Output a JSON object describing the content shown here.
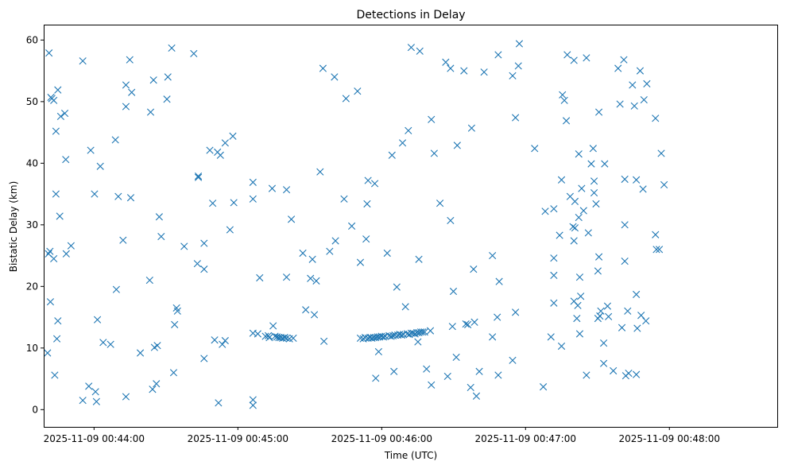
{
  "chart_data": {
    "type": "scatter",
    "title": "Detections in Delay",
    "xlabel": "Time (UTC)",
    "ylabel": "Bistatic Delay (km)",
    "marker": "x",
    "color": "#1f77b4",
    "grid": false,
    "legend": "none",
    "xlim": [
      "2025-11-09 00:43:39",
      "2025-11-09 00:48:45"
    ],
    "ylim": [
      -2.8,
      62.5
    ],
    "xticks": [
      "2025-11-09 00:44:00",
      "2025-11-09 00:45:00",
      "2025-11-09 00:46:00",
      "2025-11-09 00:47:00",
      "2025-11-09 00:48:00"
    ],
    "yticks": [
      0,
      10,
      20,
      30,
      40,
      50,
      60
    ],
    "series": [
      {
        "points": [
          [
            "00:43:41.2",
            57.9
          ],
          [
            "00:43:42.0",
            50.7
          ],
          [
            "00:43:42.4",
            50.5
          ],
          [
            "00:43:43.2",
            50.2
          ],
          [
            "00:43:44.9",
            51.9
          ],
          [
            "00:43:46.1",
            47.6
          ],
          [
            "00:43:47.8",
            48.1
          ],
          [
            "00:43:44.1",
            45.2
          ],
          [
            "00:43:48.2",
            40.6
          ],
          [
            "00:43:44.1",
            35.0
          ],
          [
            "00:43:45.7",
            31.4
          ],
          [
            "00:43:41.0",
            25.3
          ],
          [
            "00:43:41.6",
            25.7
          ],
          [
            "00:43:43.2",
            24.5
          ],
          [
            "00:43:48.4",
            25.3
          ],
          [
            "00:43:50.4",
            26.6
          ],
          [
            "00:43:41.8",
            17.5
          ],
          [
            "00:43:44.9",
            14.4
          ],
          [
            "00:43:44.5",
            11.5
          ],
          [
            "00:43:40.6",
            9.2
          ],
          [
            "00:43:43.6",
            5.6
          ],
          [
            "00:43:55.3",
            56.6
          ],
          [
            "00:43:58.6",
            42.1
          ],
          [
            "00:44:00.2",
            35.0
          ],
          [
            "00:44:01.4",
            14.6
          ],
          [
            "00:44:02.6",
            39.5
          ],
          [
            "00:44:03.8",
            10.9
          ],
          [
            "00:44:06.9",
            10.6
          ],
          [
            "00:43:55.3",
            1.5
          ],
          [
            "00:43:57.8",
            3.8
          ],
          [
            "00:44:00.6",
            2.9
          ],
          [
            "00:44:01.0",
            1.3
          ],
          [
            "00:44:08.9",
            43.8
          ],
          [
            "00:44:10.1",
            34.6
          ],
          [
            "00:44:09.3",
            19.5
          ],
          [
            "00:44:12.1",
            27.5
          ],
          [
            "00:44:13.3",
            52.7
          ],
          [
            "00:44:13.3",
            49.2
          ],
          [
            "00:44:14.9",
            56.8
          ],
          [
            "00:44:15.7",
            51.5
          ],
          [
            "00:44:15.3",
            34.4
          ],
          [
            "00:44:13.3",
            2.1
          ],
          [
            "00:44:19.3",
            9.2
          ],
          [
            "00:44:23.2",
            21.0
          ],
          [
            "00:44:23.6",
            48.3
          ],
          [
            "00:44:24.8",
            53.5
          ],
          [
            "00:44:24.4",
            3.3
          ],
          [
            "00:44:25.2",
            10.1
          ],
          [
            "00:44:26.4",
            10.4
          ],
          [
            "00:44:26.0",
            4.2
          ],
          [
            "00:44:27.2",
            31.3
          ],
          [
            "00:44:28.0",
            28.1
          ],
          [
            "00:44:30.4",
            50.4
          ],
          [
            "00:44:30.8",
            54.0
          ],
          [
            "00:44:32.4",
            58.7
          ],
          [
            "00:44:33.2",
            6.0
          ],
          [
            "00:44:33.6",
            13.8
          ],
          [
            "00:44:34.4",
            16.5
          ],
          [
            "00:44:34.8",
            16.0
          ],
          [
            "00:44:37.6",
            26.5
          ],
          [
            "00:44:41.6",
            57.8
          ],
          [
            "00:44:43.1",
            23.7
          ],
          [
            "00:44:43.5",
            37.9
          ],
          [
            "00:44:43.5",
            37.7
          ],
          [
            "00:44:45.9",
            27.0
          ],
          [
            "00:44:45.9",
            22.8
          ],
          [
            "00:44:45.9",
            8.3
          ],
          [
            "00:44:48.3",
            42.1
          ],
          [
            "00:44:49.5",
            33.5
          ],
          [
            "00:44:50.3",
            11.3
          ],
          [
            "00:44:51.5",
            41.8
          ],
          [
            "00:44:52.7",
            41.3
          ],
          [
            "00:44:51.9",
            1.1
          ],
          [
            "00:44:53.5",
            10.6
          ],
          [
            "00:44:54.7",
            11.2
          ],
          [
            "00:44:54.7",
            43.3
          ],
          [
            "00:44:56.7",
            29.2
          ],
          [
            "00:44:57.9",
            44.4
          ],
          [
            "00:44:58.3",
            33.6
          ],
          [
            "00:45:06.3",
            34.2
          ],
          [
            "00:45:06.3",
            36.9
          ],
          [
            "00:45:06.3",
            12.4
          ],
          [
            "00:45:06.3",
            1.6
          ],
          [
            "00:45:06.3",
            0.7
          ],
          [
            "00:45:08.3",
            12.3
          ],
          [
            "00:45:09.1",
            21.4
          ],
          [
            "00:45:11.5",
            11.9
          ],
          [
            "00:45:12.7",
            12.0
          ],
          [
            "00:45:13.1",
            11.7
          ],
          [
            "00:45:14.3",
            35.9
          ],
          [
            "00:45:14.7",
            13.6
          ],
          [
            "00:45:15.5",
            11.9
          ],
          [
            "00:45:16.3",
            11.8
          ],
          [
            "00:45:17.1",
            11.7
          ],
          [
            "00:45:17.9",
            11.7
          ],
          [
            "00:45:18.7",
            11.6
          ],
          [
            "00:45:19.5",
            11.7
          ],
          [
            "00:45:20.3",
            11.6
          ],
          [
            "00:45:20.3",
            35.7
          ],
          [
            "00:45:20.3",
            21.5
          ],
          [
            "00:45:21.5",
            11.5
          ],
          [
            "00:45:22.3",
            30.9
          ],
          [
            "00:45:23.1",
            11.6
          ],
          [
            "00:45:27.1",
            25.4
          ],
          [
            "00:45:28.3",
            16.2
          ],
          [
            "00:45:30.3",
            21.3
          ],
          [
            "00:45:31.1",
            24.4
          ],
          [
            "00:45:31.9",
            15.4
          ],
          [
            "00:45:32.7",
            20.9
          ],
          [
            "00:45:34.3",
            38.6
          ],
          [
            "00:45:35.5",
            55.4
          ],
          [
            "00:45:35.9",
            11.1
          ],
          [
            "00:45:38.3",
            25.7
          ],
          [
            "00:45:40.3",
            54.0
          ],
          [
            "00:45:40.7",
            27.4
          ],
          [
            "00:45:44.3",
            34.2
          ],
          [
            "00:45:45.1",
            50.5
          ],
          [
            "00:45:47.5",
            29.8
          ],
          [
            "00:45:49.9",
            51.7
          ],
          [
            "00:45:51.1",
            23.9
          ],
          [
            "00:45:51.1",
            11.6
          ],
          [
            "00:45:52.3",
            11.5
          ],
          [
            "00:45:53.1",
            11.7
          ],
          [
            "00:45:53.5",
            27.7
          ],
          [
            "00:45:53.9",
            33.4
          ],
          [
            "00:45:54.3",
            11.6
          ],
          [
            "00:45:54.3",
            37.2
          ],
          [
            "00:45:55.1",
            11.7
          ],
          [
            "00:45:55.9",
            11.6
          ],
          [
            "00:45:56.7",
            11.7
          ],
          [
            "00:45:57.5",
            11.7
          ],
          [
            "00:45:57.1",
            36.7
          ],
          [
            "00:45:58.3",
            11.8
          ],
          [
            "00:45:59.1",
            11.8
          ],
          [
            "00:45:57.5",
            5.1
          ],
          [
            "00:45:58.7",
            9.4
          ],
          [
            "00:45:59.9",
            11.9
          ],
          [
            "00:46:00.7",
            11.8
          ],
          [
            "00:46:01.5",
            11.9
          ],
          [
            "00:46:02.3",
            25.4
          ],
          [
            "00:46:03.1",
            12.0
          ],
          [
            "00:46:03.9",
            11.9
          ],
          [
            "00:46:04.3",
            41.3
          ],
          [
            "00:46:04.7",
            12.0
          ],
          [
            "00:46:05.1",
            6.2
          ],
          [
            "00:46:05.5",
            12.1
          ],
          [
            "00:46:06.3",
            19.9
          ],
          [
            "00:46:06.7",
            12.1
          ],
          [
            "00:46:07.5",
            12.2
          ],
          [
            "00:46:08.3",
            12.1
          ],
          [
            "00:46:08.7",
            43.3
          ],
          [
            "00:46:09.1",
            12.2
          ],
          [
            "00:46:09.9",
            16.7
          ],
          [
            "00:46:10.7",
            12.3
          ],
          [
            "00:46:11.1",
            45.3
          ],
          [
            "00:46:11.5",
            12.2
          ],
          [
            "00:46:12.3",
            12.4
          ],
          [
            "00:46:12.3",
            58.8
          ],
          [
            "00:46:13.1",
            12.4
          ],
          [
            "00:46:13.9",
            12.3
          ],
          [
            "00:46:14.7",
            12.5
          ],
          [
            "00:46:15.1",
            11.0
          ],
          [
            "00:46:15.5",
            12.5
          ],
          [
            "00:46:15.5",
            24.4
          ],
          [
            "00:46:15.9",
            58.2
          ],
          [
            "00:46:16.3",
            12.6
          ],
          [
            "00:46:17.1",
            12.6
          ],
          [
            "00:46:17.9",
            12.6
          ],
          [
            "00:46:18.7",
            6.6
          ],
          [
            "00:46:20.3",
            12.8
          ],
          [
            "00:46:20.7",
            47.1
          ],
          [
            "00:46:20.7",
            4.0
          ],
          [
            "00:46:21.9",
            41.6
          ],
          [
            "00:46:24.3",
            33.5
          ],
          [
            "00:46:26.7",
            56.4
          ],
          [
            "00:46:27.5",
            5.4
          ],
          [
            "00:46:28.7",
            55.4
          ],
          [
            "00:46:28.7",
            30.7
          ],
          [
            "00:46:29.5",
            13.5
          ],
          [
            "00:46:29.9",
            19.2
          ],
          [
            "00:46:31.1",
            8.5
          ],
          [
            "00:46:31.5",
            42.9
          ],
          [
            "00:46:34.3",
            55.0
          ],
          [
            "00:46:35.1",
            13.9
          ],
          [
            "00:46:35.9",
            13.8
          ],
          [
            "00:46:37.1",
            3.6
          ],
          [
            "00:46:37.5",
            45.7
          ],
          [
            "00:46:38.3",
            22.8
          ],
          [
            "00:46:38.7",
            14.2
          ],
          [
            "00:46:39.5",
            2.2
          ],
          [
            "00:46:40.7",
            6.2
          ],
          [
            "00:46:42.7",
            54.8
          ],
          [
            "00:46:46.2",
            11.8
          ],
          [
            "00:46:46.2",
            25.0
          ],
          [
            "00:46:48.2",
            15.0
          ],
          [
            "00:46:48.6",
            57.6
          ],
          [
            "00:46:49.0",
            20.8
          ],
          [
            "00:46:48.6",
            5.6
          ],
          [
            "00:46:54.6",
            54.2
          ],
          [
            "00:46:54.6",
            8.0
          ],
          [
            "00:46:55.8",
            15.8
          ],
          [
            "00:46:55.8",
            47.4
          ],
          [
            "00:46:57.0",
            55.8
          ],
          [
            "00:46:57.4",
            59.4
          ],
          [
            "00:47:03.8",
            42.4
          ],
          [
            "00:47:07.4",
            3.7
          ],
          [
            "00:47:08.2",
            32.2
          ],
          [
            "00:47:10.6",
            11.8
          ],
          [
            "00:47:11.8",
            32.6
          ],
          [
            "00:47:11.8",
            24.6
          ],
          [
            "00:47:11.8",
            21.8
          ],
          [
            "00:47:11.8",
            17.3
          ],
          [
            "00:47:14.2",
            28.3
          ],
          [
            "00:47:15.0",
            37.3
          ],
          [
            "00:47:15.0",
            10.3
          ],
          [
            "00:47:15.4",
            51.1
          ],
          [
            "00:47:16.2",
            50.2
          ],
          [
            "00:47:17.0",
            46.9
          ],
          [
            "00:47:17.4",
            57.6
          ],
          [
            "00:47:18.6",
            34.6
          ],
          [
            "00:47:19.8",
            29.7
          ],
          [
            "00:47:20.2",
            56.7
          ],
          [
            "00:47:20.6",
            33.8
          ],
          [
            "00:47:20.6",
            29.5
          ],
          [
            "00:47:20.2",
            27.4
          ],
          [
            "00:47:20.2",
            17.6
          ],
          [
            "00:47:21.4",
            14.8
          ],
          [
            "00:47:21.8",
            16.9
          ],
          [
            "00:47:22.2",
            41.5
          ],
          [
            "00:47:22.2",
            31.2
          ],
          [
            "00:47:22.6",
            12.3
          ],
          [
            "00:47:22.6",
            21.5
          ],
          [
            "00:47:23.0",
            18.4
          ],
          [
            "00:47:23.4",
            35.9
          ],
          [
            "00:47:24.2",
            32.3
          ],
          [
            "00:47:25.4",
            57.1
          ],
          [
            "00:47:25.4",
            5.6
          ],
          [
            "00:47:26.2",
            28.7
          ],
          [
            "00:47:27.4",
            39.9
          ],
          [
            "00:47:28.2",
            42.4
          ],
          [
            "00:47:28.6",
            37.1
          ],
          [
            "00:47:28.6",
            35.2
          ],
          [
            "00:47:29.4",
            33.4
          ],
          [
            "00:47:30.2",
            14.8
          ],
          [
            "00:47:30.2",
            22.5
          ],
          [
            "00:47:30.6",
            48.3
          ],
          [
            "00:47:30.6",
            24.8
          ],
          [
            "00:47:31.0",
            15.2
          ],
          [
            "00:47:31.4",
            16.0
          ],
          [
            "00:47:32.6",
            10.8
          ],
          [
            "00:47:32.6",
            7.5
          ],
          [
            "00:47:33.0",
            39.9
          ],
          [
            "00:47:34.2",
            16.8
          ],
          [
            "00:47:34.6",
            15.1
          ],
          [
            "00:47:36.6",
            6.3
          ],
          [
            "00:47:38.6",
            55.4
          ],
          [
            "00:47:39.4",
            49.6
          ],
          [
            "00:47:40.2",
            13.3
          ],
          [
            "00:47:41.0",
            56.8
          ],
          [
            "00:47:41.4",
            37.4
          ],
          [
            "00:47:41.4",
            24.1
          ],
          [
            "00:47:41.4",
            30.0
          ],
          [
            "00:47:41.8",
            5.5
          ],
          [
            "00:47:42.6",
            16.0
          ],
          [
            "00:47:43.0",
            5.9
          ],
          [
            "00:47:44.6",
            52.7
          ],
          [
            "00:47:45.4",
            49.3
          ],
          [
            "00:47:46.2",
            37.3
          ],
          [
            "00:47:46.2",
            18.7
          ],
          [
            "00:47:46.2",
            5.7
          ],
          [
            "00:47:46.6",
            13.2
          ],
          [
            "00:47:47.8",
            55.0
          ],
          [
            "00:47:48.2",
            15.3
          ],
          [
            "00:47:49.0",
            35.8
          ],
          [
            "00:47:49.4",
            50.3
          ],
          [
            "00:47:50.2",
            14.4
          ],
          [
            "00:47:50.6",
            52.9
          ],
          [
            "00:47:54.2",
            47.3
          ],
          [
            "00:47:54.2",
            28.4
          ],
          [
            "00:47:54.6",
            26.0
          ],
          [
            "00:47:55.8",
            26.0
          ],
          [
            "00:47:56.6",
            41.6
          ],
          [
            "00:47:57.8",
            36.5
          ]
        ]
      }
    ]
  }
}
